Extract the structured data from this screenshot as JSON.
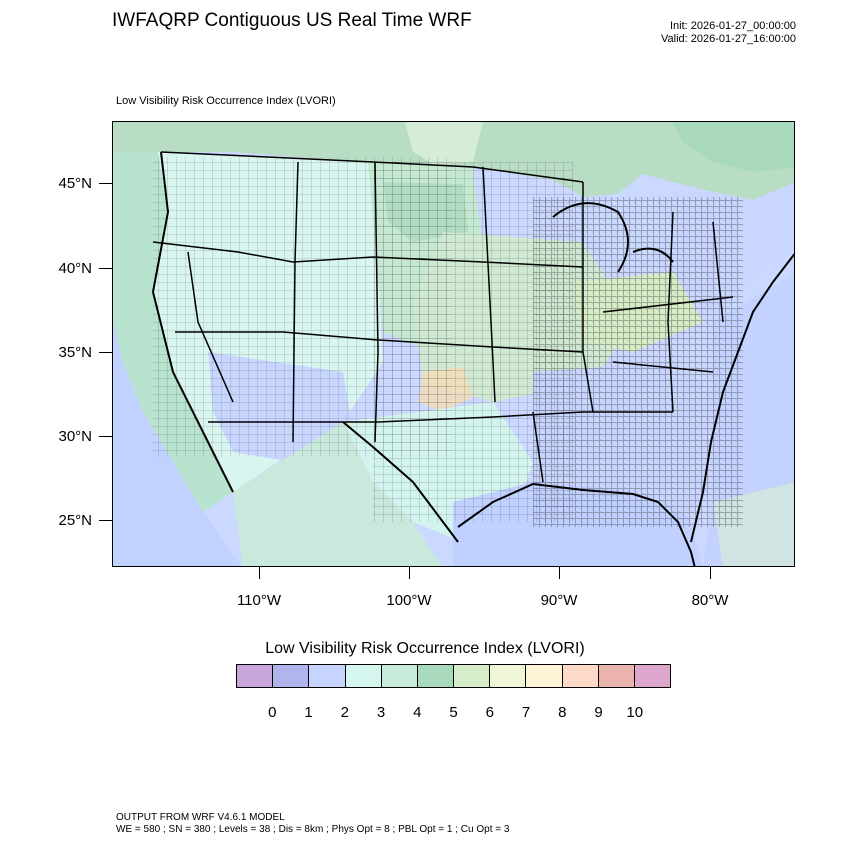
{
  "title": "IWFAQRP Contiguous US Real Time WRF",
  "init_time": "Init: 2026-01-27_00:00:00",
  "valid_time": "Valid: 2026-01-27_16:00:00",
  "field_label": "Low Visibility Risk Occurrence Index   (LVORI)",
  "latitude_ticks": [
    "45°N",
    "40°N",
    "35°N",
    "30°N",
    "25°N"
  ],
  "longitude_ticks": [
    "110°W",
    "100°W",
    "90°W",
    "80°W"
  ],
  "legend": {
    "title": "Low Visibility Risk Occurrence Index  (LVORI)",
    "levels": [
      "0",
      "1",
      "2",
      "3",
      "4",
      "5",
      "6",
      "7",
      "8",
      "9",
      "10"
    ],
    "colors": [
      "#c8a6dc",
      "#b0b5ee",
      "#c6d4ff",
      "#d6f7f0",
      "#c6ebd8",
      "#a9d9bd",
      "#d6edc9",
      "#eef6d7",
      "#fdf4d7",
      "#fdd9c7",
      "#ebb3ae",
      "#dda6cc"
    ]
  },
  "footer": {
    "line1": "OUTPUT FROM WRF V4.6.1 MODEL",
    "line2": "WE = 580 ; SN = 380 ; Levels = 38 ; Dis = 8km ; Phys Opt = 8 ; PBL Opt = 1 ; Cu Opt = 3"
  }
}
